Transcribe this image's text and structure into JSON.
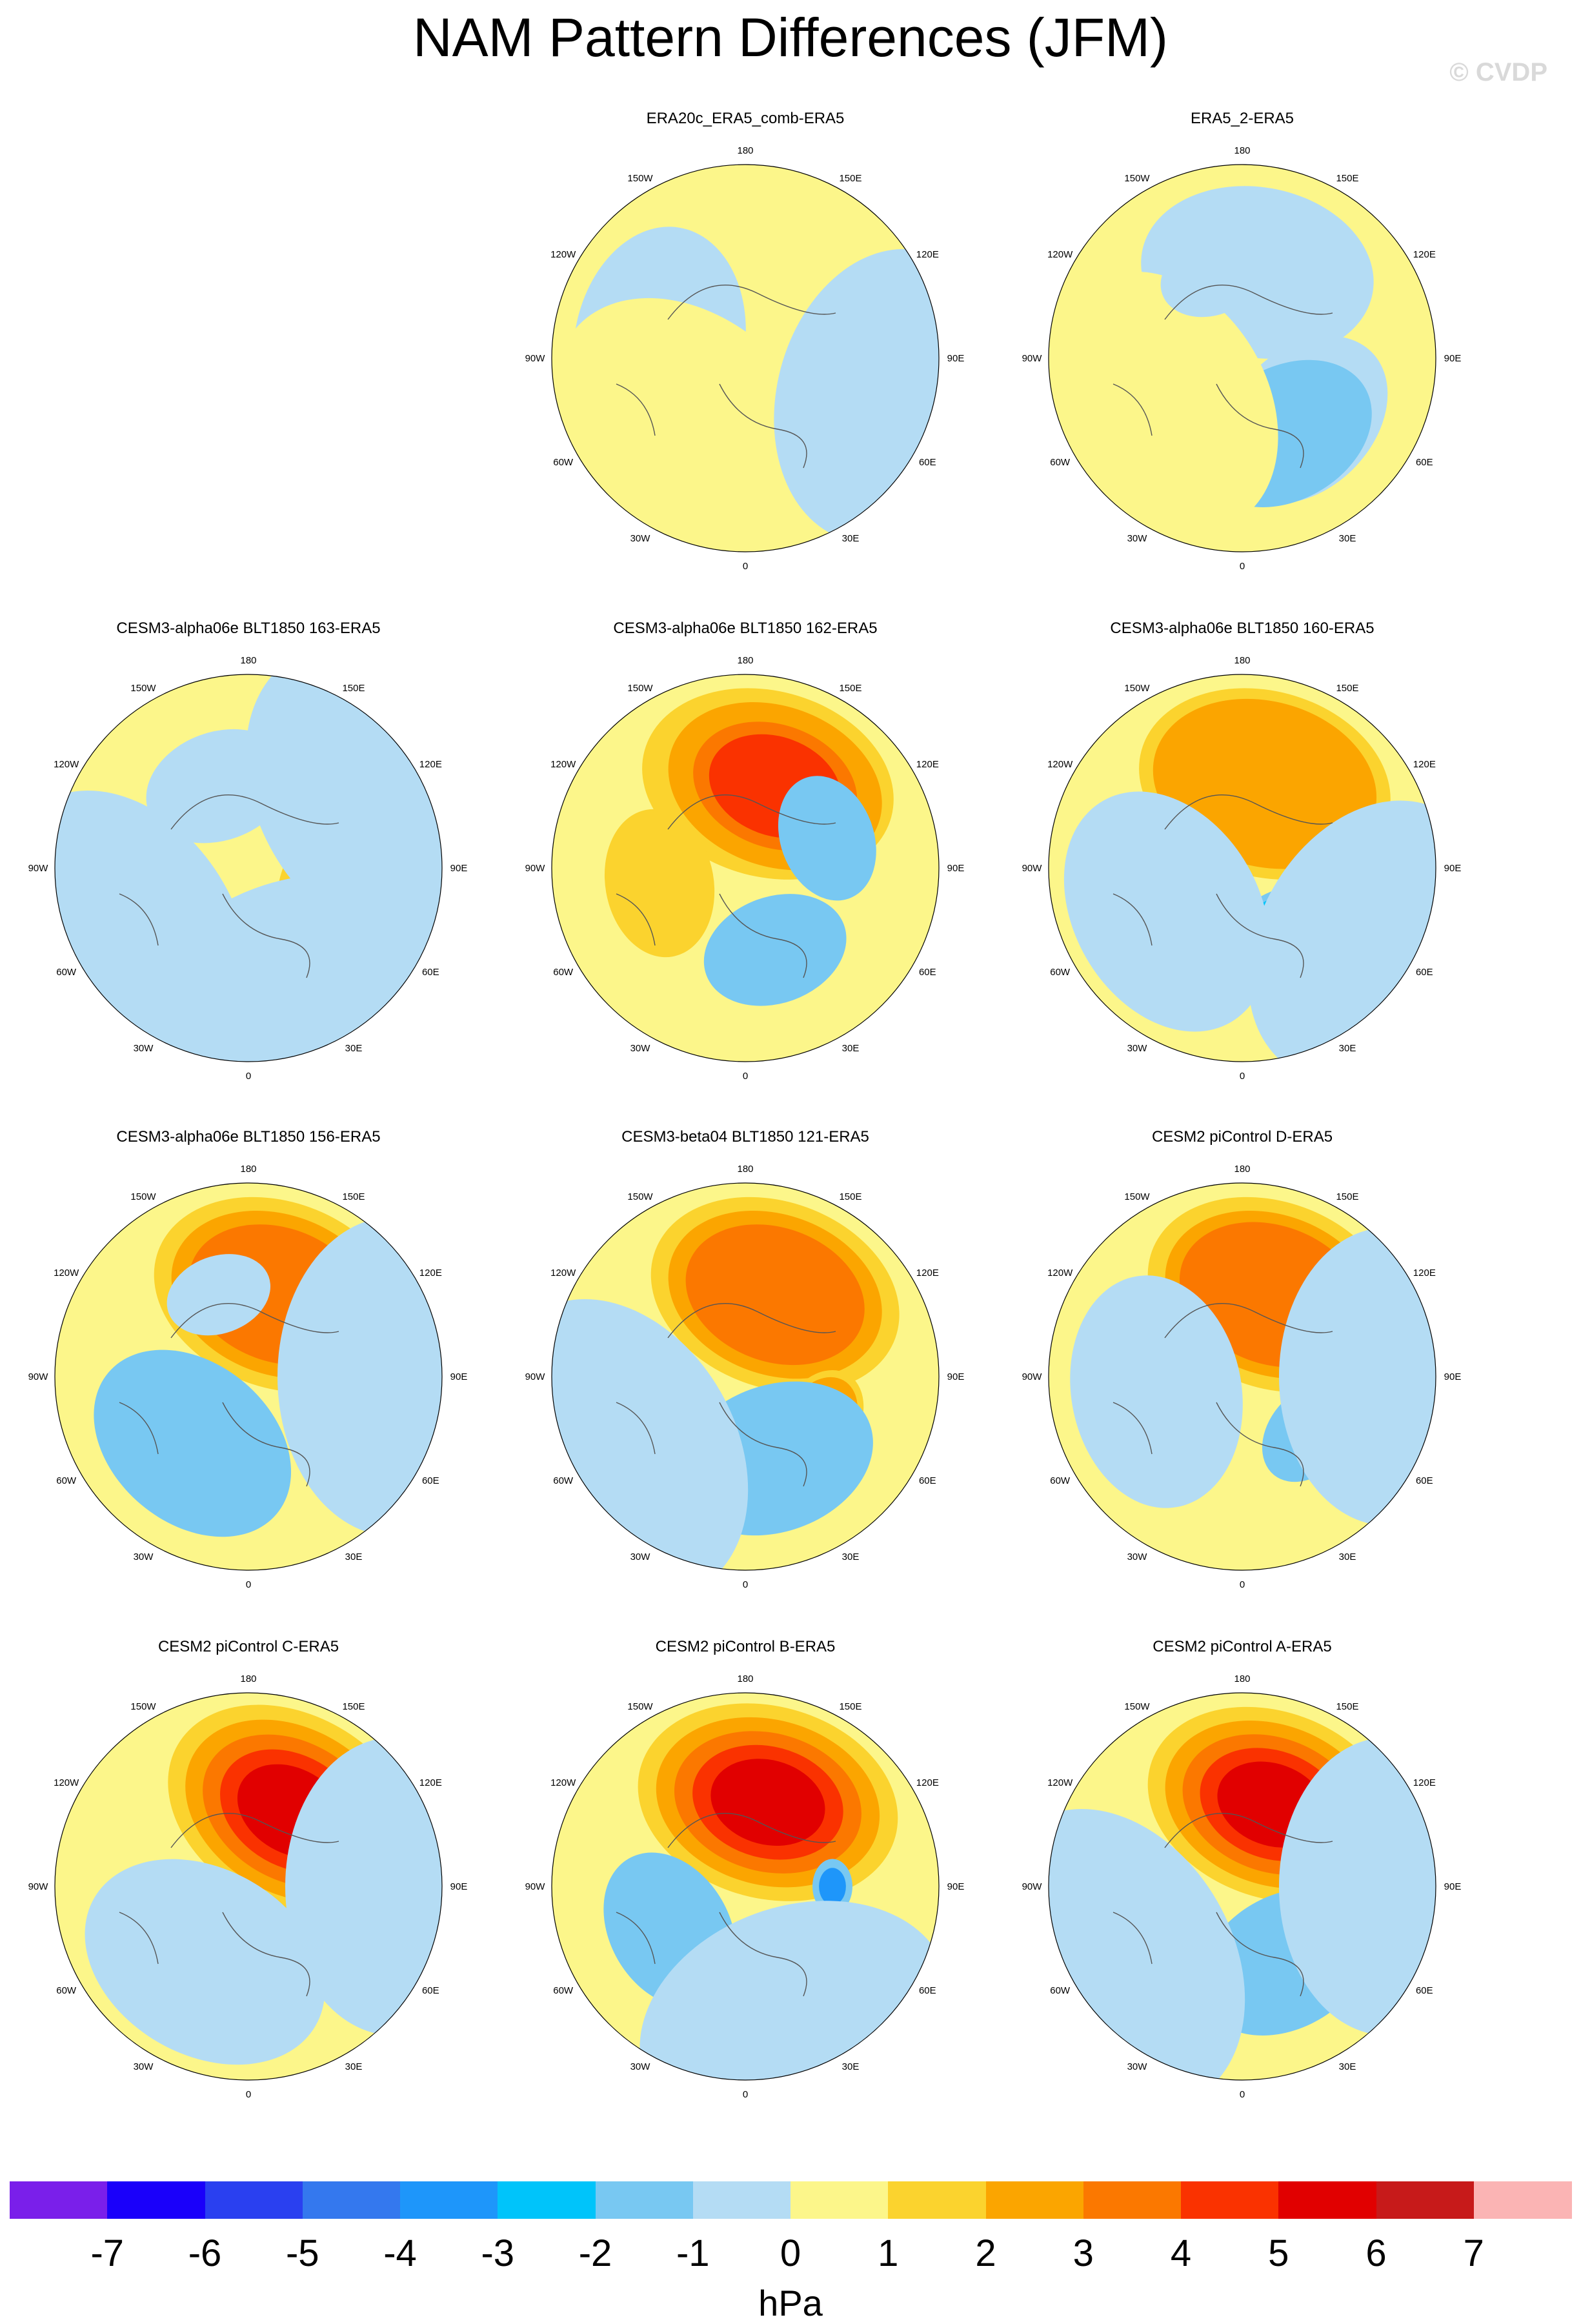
{
  "title": "NAM Pattern Differences (JFM)",
  "copyright": "© CVDP",
  "lon_labels": [
    "180",
    "150E",
    "120E",
    "90E",
    "60E",
    "30E",
    "0",
    "30W",
    "60W",
    "90W",
    "120W",
    "150W"
  ],
  "panels": [
    {
      "title": "ERA20c_ERA5_comb-ERA5",
      "blobs": [
        {
          "lon": 155,
          "r": 0.32,
          "level": 0
        },
        {
          "lon": 30,
          "r": 0.45,
          "level": 0
        },
        {
          "lon": 260,
          "r": 0.55,
          "level": -1
        },
        {
          "lon": 320,
          "r": 0.7,
          "level": 0
        },
        {
          "lon": 75,
          "r": 0.7,
          "level": -1
        }
      ]
    },
    {
      "title": "ERA5_2-ERA5",
      "blobs": [
        {
          "lon": 170,
          "r": 0.55,
          "level": -1
        },
        {
          "lon": 45,
          "r": 0.45,
          "level": -1
        },
        {
          "lon": 30,
          "r": 0.5,
          "level": -2
        },
        {
          "lon": 300,
          "r": 0.65,
          "level": 0
        },
        {
          "lon": 200,
          "r": 0.25,
          "level": -1
        }
      ]
    },
    {
      "title": "CESM3-alpha06e BLT1850 163-ERA5",
      "blobs": [
        {
          "lon": 200,
          "r": 0.35,
          "level": -1
        },
        {
          "lon": 75,
          "r": 0.35,
          "level": 1
        },
        {
          "lon": 300,
          "r": 0.75,
          "level": -1
        },
        {
          "lon": 120,
          "r": 0.75,
          "level": -1
        },
        {
          "lon": 20,
          "r": 0.8,
          "level": -1
        }
      ]
    },
    {
      "title": "CESM3-alpha06e BLT1850 162-ERA5",
      "blobs": [
        {
          "lon": 165,
          "r": 0.6,
          "level": 1
        },
        {
          "lon": 160,
          "r": 0.6,
          "level": 2
        },
        {
          "lon": 160,
          "r": 0.55,
          "level": 3
        },
        {
          "lon": 160,
          "r": 0.55,
          "level": 4
        },
        {
          "lon": 110,
          "r": 0.35,
          "level": -2
        },
        {
          "lon": 20,
          "r": 0.4,
          "level": -2
        },
        {
          "lon": 280,
          "r": 0.35,
          "level": 1
        }
      ]
    },
    {
      "title": "CESM3-alpha06e BLT1850 160-ERA5",
      "blobs": [
        {
          "lon": 165,
          "r": 0.6,
          "level": 1
        },
        {
          "lon": 165,
          "r": 0.62,
          "level": 2
        },
        {
          "lon": 30,
          "r": 0.4,
          "level": -2
        },
        {
          "lon": 30,
          "r": 0.42,
          "level": -3
        },
        {
          "lon": 300,
          "r": 0.6,
          "level": -1
        },
        {
          "lon": 60,
          "r": 0.7,
          "level": -1
        }
      ]
    },
    {
      "title": "CESM3-alpha06e BLT1850 156-ERA5",
      "blobs": [
        {
          "lon": 160,
          "r": 0.6,
          "level": 1
        },
        {
          "lon": 160,
          "r": 0.6,
          "level": 2
        },
        {
          "lon": 160,
          "r": 0.6,
          "level": 3
        },
        {
          "lon": 320,
          "r": 0.6,
          "level": -2
        },
        {
          "lon": 200,
          "r": 0.25,
          "level": -1
        },
        {
          "lon": 90,
          "r": 0.75,
          "level": -1
        }
      ]
    },
    {
      "title": "CESM3-beta04 BLT1850 121-ERA5",
      "blobs": [
        {
          "lon": 160,
          "r": 0.6,
          "level": 1
        },
        {
          "lon": 160,
          "r": 0.6,
          "level": 2
        },
        {
          "lon": 160,
          "r": 0.6,
          "level": 3
        },
        {
          "lon": 60,
          "r": 0.25,
          "level": 1
        },
        {
          "lon": 60,
          "r": 0.25,
          "level": 2
        },
        {
          "lon": 20,
          "r": 0.55,
          "level": -2
        },
        {
          "lon": 300,
          "r": 0.75,
          "level": -1
        }
      ]
    },
    {
      "title": "CESM2 piControl D-ERA5",
      "blobs": [
        {
          "lon": 160,
          "r": 0.6,
          "level": 1
        },
        {
          "lon": 160,
          "r": 0.6,
          "level": 2
        },
        {
          "lon": 160,
          "r": 0.62,
          "level": 3
        },
        {
          "lon": 50,
          "r": 0.3,
          "level": -2
        },
        {
          "lon": 280,
          "r": 0.55,
          "level": -1
        },
        {
          "lon": 90,
          "r": 0.7,
          "level": -1
        }
      ]
    },
    {
      "title": "CESM2 piControl C-ERA5",
      "blobs": [
        {
          "lon": 150,
          "r": 0.62,
          "level": 1
        },
        {
          "lon": 150,
          "r": 0.62,
          "level": 2
        },
        {
          "lon": 150,
          "r": 0.62,
          "level": 3
        },
        {
          "lon": 150,
          "r": 0.62,
          "level": 4
        },
        {
          "lon": 150,
          "r": 0.62,
          "level": 5
        },
        {
          "lon": 330,
          "r": 0.6,
          "level": -1
        },
        {
          "lon": 90,
          "r": 0.7,
          "level": -1
        }
      ]
    },
    {
      "title": "CESM2 piControl B-ERA5",
      "blobs": [
        {
          "lon": 165,
          "r": 0.62,
          "level": 1
        },
        {
          "lon": 165,
          "r": 0.62,
          "level": 2
        },
        {
          "lon": 165,
          "r": 0.62,
          "level": 3
        },
        {
          "lon": 165,
          "r": 0.62,
          "level": 4
        },
        {
          "lon": 165,
          "r": 0.62,
          "level": 5
        },
        {
          "lon": 90,
          "r": 0.15,
          "level": -2
        },
        {
          "lon": 90,
          "r": 0.15,
          "level": -4
        },
        {
          "lon": 300,
          "r": 0.45,
          "level": -2
        },
        {
          "lon": 20,
          "r": 0.75,
          "level": -1
        }
      ]
    },
    {
      "title": "CESM2 piControl A-ERA5",
      "blobs": [
        {
          "lon": 160,
          "r": 0.6,
          "level": 1
        },
        {
          "lon": 160,
          "r": 0.6,
          "level": 2
        },
        {
          "lon": 160,
          "r": 0.6,
          "level": 3
        },
        {
          "lon": 160,
          "r": 0.6,
          "level": 4
        },
        {
          "lon": 160,
          "r": 0.6,
          "level": 5
        },
        {
          "lon": 30,
          "r": 0.5,
          "level": -2
        },
        {
          "lon": 90,
          "r": 0.7,
          "level": -1
        },
        {
          "lon": 300,
          "r": 0.75,
          "level": -1
        }
      ]
    }
  ],
  "colorbar": {
    "colors": [
      "#7a1fea",
      "#1a00fa",
      "#2a40f0",
      "#3478ee",
      "#1e96fa",
      "#00c4fa",
      "#78c8f2",
      "#b4dcf4",
      "#fcf68a",
      "#fbd32e",
      "#fba500",
      "#fb7800",
      "#fa3200",
      "#e10000",
      "#c71a1a",
      "#fbb4b4"
    ],
    "ticks": [
      "-7",
      "-6",
      "-5",
      "-4",
      "-3",
      "-2",
      "-1",
      "0",
      "1",
      "2",
      "3",
      "4",
      "5",
      "6",
      "7"
    ],
    "units": "hPa"
  }
}
